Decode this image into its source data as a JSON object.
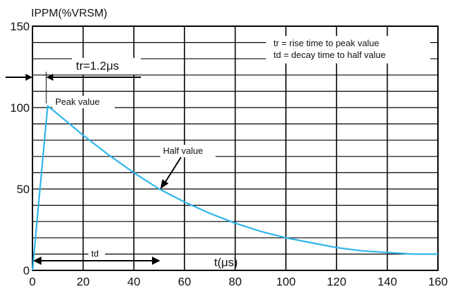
{
  "chart_data": {
    "type": "line",
    "title": "",
    "ylabel": "IPPM(%VRSM)",
    "xlabel": "t(μs)",
    "xlim": [
      0,
      160
    ],
    "ylim": [
      0,
      150
    ],
    "x_ticks": [
      "0",
      "20",
      "40",
      "60",
      "80",
      "100",
      "120",
      "140",
      "160"
    ],
    "y_ticks": [
      "0",
      "50",
      "100",
      "150"
    ],
    "grid": true,
    "series": [
      {
        "color": "#2bb5ea",
        "x": [
          0,
          6,
          10,
          20,
          30,
          40,
          50,
          60,
          70,
          80,
          90,
          100,
          110,
          120,
          130,
          140,
          150,
          160
        ],
        "y": [
          0,
          101,
          96,
          83,
          71,
          60,
          50,
          42,
          35,
          29,
          24,
          20,
          17,
          14,
          12,
          11,
          10,
          10
        ]
      }
    ],
    "annotations": {
      "tr_label": "tr=1.2μs",
      "peak_label": "Peak value",
      "half_label": "Half value",
      "td_label": "td",
      "legend_line1": "tr = rise time to peak value",
      "legend_line2": "td = decay time to half value"
    }
  }
}
